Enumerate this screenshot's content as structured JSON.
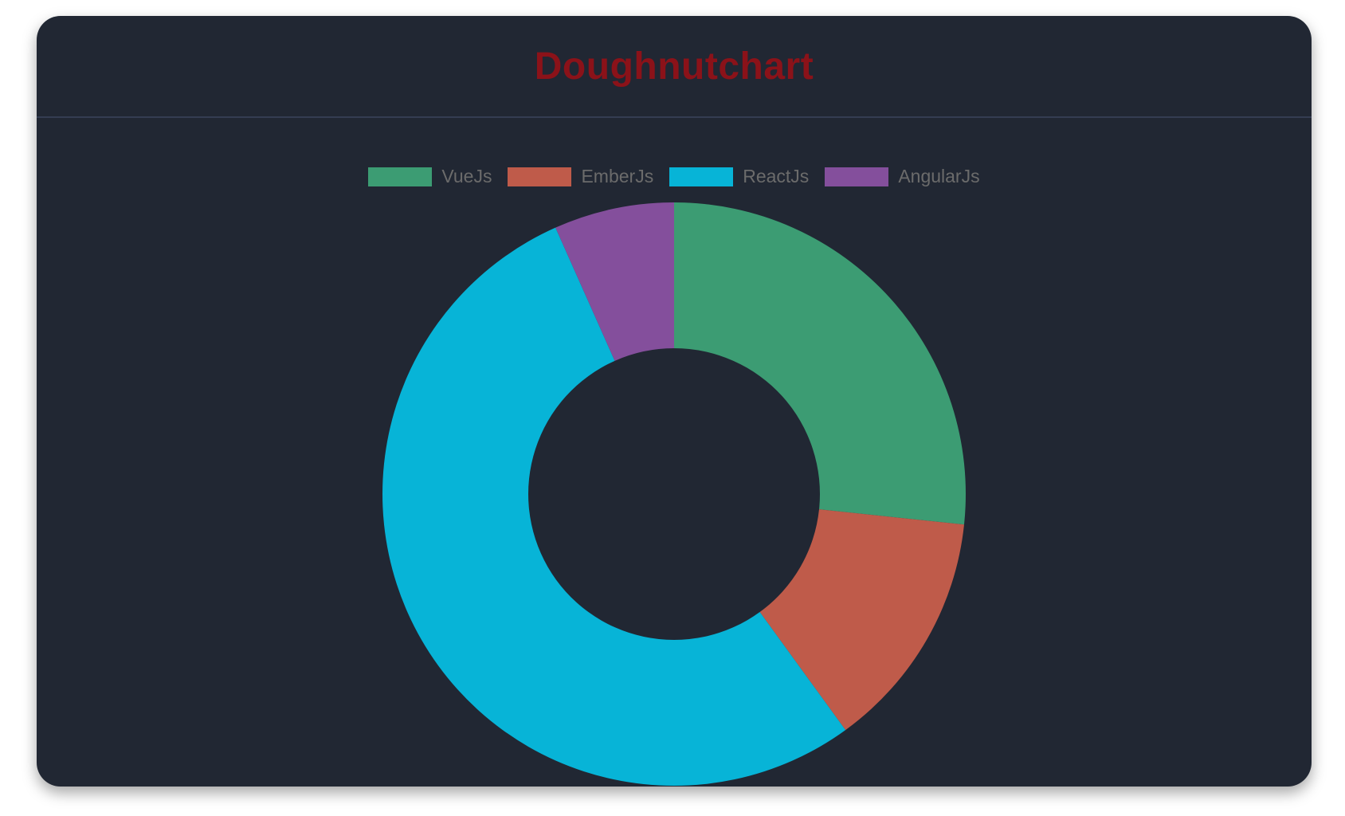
{
  "chart_data": {
    "type": "doughnut",
    "title": "Doughnutchart",
    "legend_position": "top",
    "labels": [
      "VueJs",
      "EmberJs",
      "ReactJs",
      "AngularJs"
    ],
    "values": [
      40,
      20,
      80,
      10
    ],
    "colors": [
      "#3c9c73",
      "#bf5b4a",
      "#07b4d7",
      "#844f9c"
    ]
  }
}
